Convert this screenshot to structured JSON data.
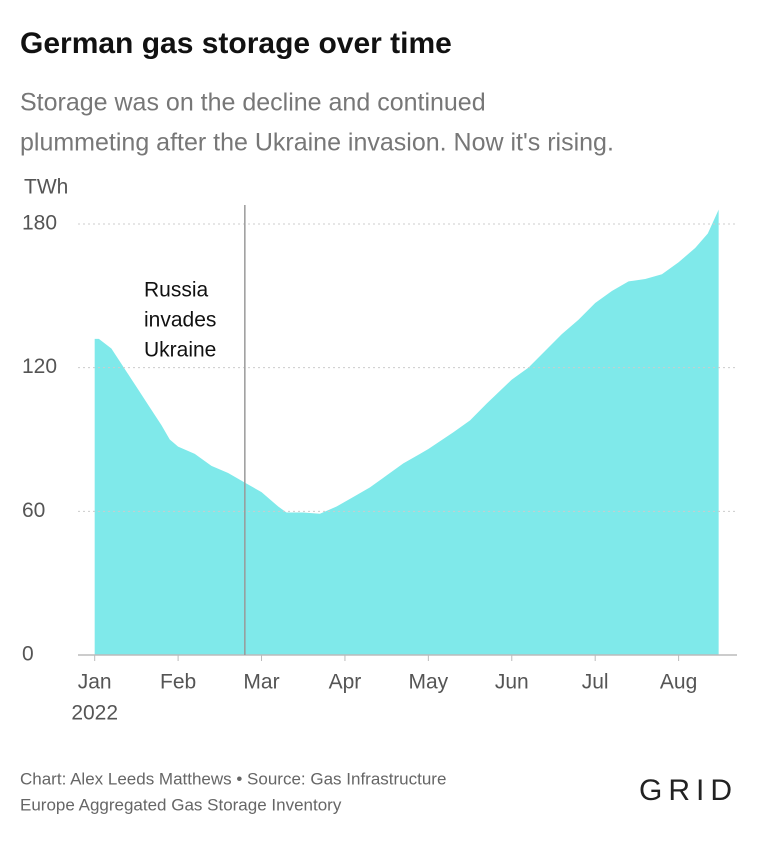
{
  "chart_data": {
    "type": "area",
    "title": "German gas storage over time",
    "subtitle": [
      "Storage was on the decline and continued",
      "plummeting after the Ukraine invasion. Now it's rising."
    ],
    "ylabel": "TWh",
    "xlabel": "2022",
    "color": "#7fe9ea",
    "x": [
      0,
      0.05,
      0.2,
      0.35,
      0.5,
      0.65,
      0.8,
      0.9,
      1.0,
      1.2,
      1.4,
      1.6,
      1.8,
      2.0,
      2.2,
      2.3,
      2.5,
      2.7,
      2.9,
      3.0,
      3.1,
      3.3,
      3.5,
      3.7,
      3.9,
      4.0,
      4.3,
      4.5,
      4.7,
      5.0,
      5.2,
      5.4,
      5.6,
      5.8,
      6.0,
      6.2,
      6.4,
      6.6,
      6.8,
      7.0,
      7.2,
      7.35,
      7.48
    ],
    "values": [
      132,
      132,
      128,
      120,
      112,
      104,
      96,
      90,
      87,
      84,
      79,
      76,
      72,
      68,
      62,
      59.5,
      59.5,
      59,
      62,
      64,
      66,
      70,
      75,
      80,
      84,
      86,
      93,
      98,
      105,
      115,
      120,
      127,
      134,
      140,
      147,
      152,
      156,
      157,
      159,
      164,
      170,
      176,
      186
    ],
    "xlim": [
      -0.2,
      7.7
    ],
    "xticks": [
      {
        "value": 0,
        "label": "Jan"
      },
      {
        "value": 1,
        "label": "Feb"
      },
      {
        "value": 2,
        "label": "Mar"
      },
      {
        "value": 3,
        "label": "Apr"
      },
      {
        "value": 4,
        "label": "May"
      },
      {
        "value": 5,
        "label": "Jun"
      },
      {
        "value": 6,
        "label": "Jul"
      },
      {
        "value": 7,
        "label": "Aug"
      }
    ],
    "ylim": [
      0,
      190
    ],
    "yticks": [
      0,
      60,
      120,
      180
    ],
    "grid": true,
    "annotation": {
      "x": 1.8,
      "lines": [
        "Russia",
        "invades",
        "Ukraine"
      ]
    },
    "source": [
      "Chart: Alex Leeds Matthews • Source: Gas Infrastructure",
      "Europe Aggregated Gas Storage Inventory"
    ],
    "logo": "GRID"
  }
}
